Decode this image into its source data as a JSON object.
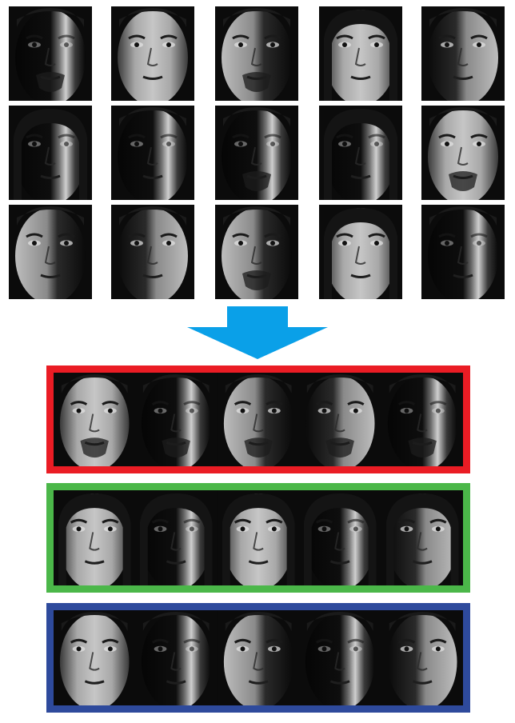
{
  "colors": {
    "background": "#ffffff",
    "arrow": "#0aa0e8",
    "group_borders": [
      "#ea1c24",
      "#4bb749",
      "#2e4a9c"
    ]
  },
  "grid": {
    "rows": 3,
    "cols": 5,
    "tiles": [
      {
        "subject": "male-stubble",
        "light": "left-harsh"
      },
      {
        "subject": "male-clean",
        "light": "frontal"
      },
      {
        "subject": "male-goatee",
        "light": "left"
      },
      {
        "subject": "female",
        "light": "frontal"
      },
      {
        "subject": "male-clean",
        "light": "right"
      },
      {
        "subject": "female",
        "light": "left-harsh"
      },
      {
        "subject": "male-clean",
        "light": "left-harsh"
      },
      {
        "subject": "male-goatee",
        "light": "left-harsh"
      },
      {
        "subject": "female",
        "light": "left-harsh"
      },
      {
        "subject": "male-goatee",
        "light": "frontal"
      },
      {
        "subject": "male-clean",
        "light": "left"
      },
      {
        "subject": "male-clean",
        "light": "right"
      },
      {
        "subject": "male-goatee",
        "light": "left"
      },
      {
        "subject": "female",
        "light": "frontal"
      },
      {
        "subject": "male-clean",
        "light": "left-harsh"
      }
    ]
  },
  "arrow": {
    "icon": "down-arrow-icon"
  },
  "groups": [
    {
      "border": "#ea1c24",
      "tiles": [
        {
          "subject": "male-goatee",
          "light": "frontal"
        },
        {
          "subject": "male-goatee",
          "light": "left-harsh"
        },
        {
          "subject": "male-goatee",
          "light": "left"
        },
        {
          "subject": "male-goatee",
          "light": "right"
        },
        {
          "subject": "male-goatee",
          "light": "left-harsh"
        }
      ]
    },
    {
      "border": "#4bb749",
      "tiles": [
        {
          "subject": "female",
          "light": "frontal"
        },
        {
          "subject": "female",
          "light": "left-harsh"
        },
        {
          "subject": "female",
          "light": "frontal"
        },
        {
          "subject": "female",
          "light": "left-harsh"
        },
        {
          "subject": "female",
          "light": "right"
        }
      ]
    },
    {
      "border": "#2e4a9c",
      "tiles": [
        {
          "subject": "male-clean",
          "light": "frontal"
        },
        {
          "subject": "male-clean",
          "light": "left-harsh"
        },
        {
          "subject": "male-clean",
          "light": "left"
        },
        {
          "subject": "male-clean",
          "light": "left-harsh"
        },
        {
          "subject": "male-clean",
          "light": "right"
        }
      ]
    }
  ]
}
